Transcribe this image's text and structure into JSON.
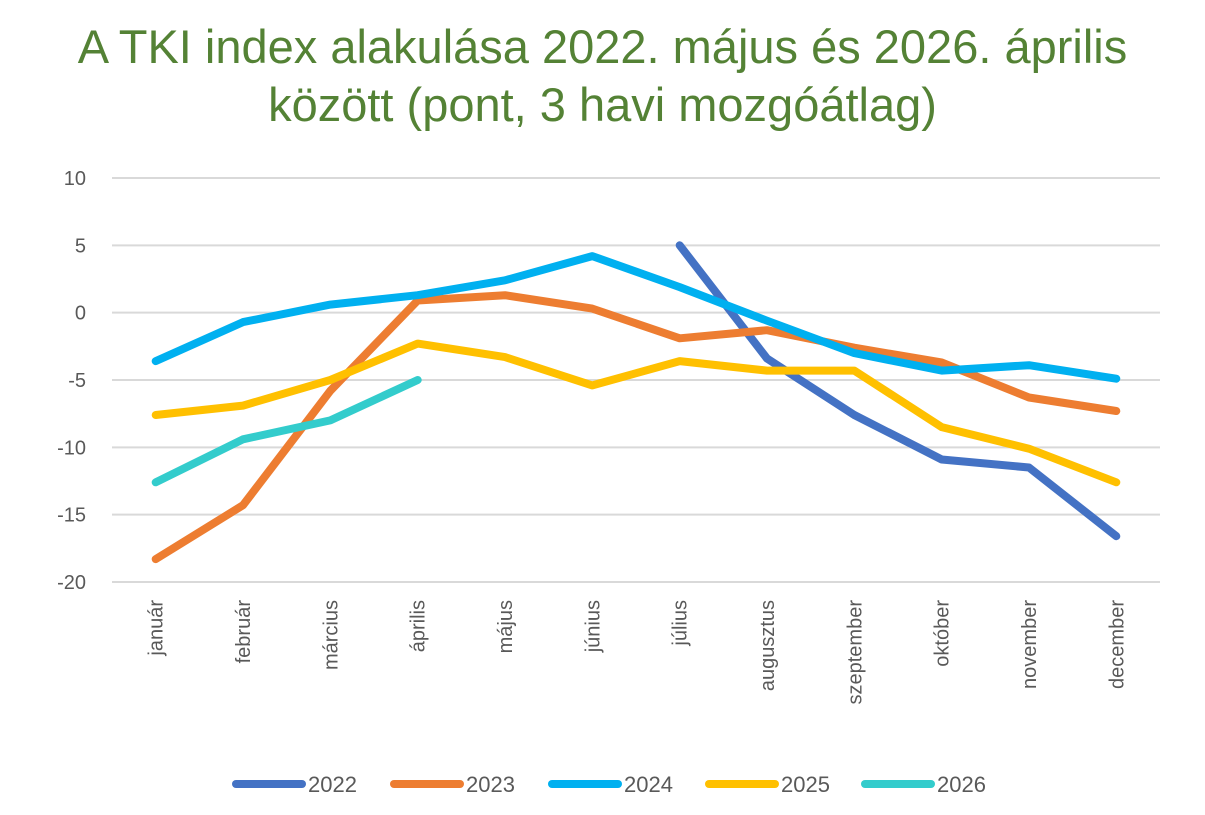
{
  "chart_data": {
    "type": "line",
    "title_lines": [
      "A TKI index alakulása 2022. május és 2026. április",
      "között (pont, 3 havi mozgóátlag)"
    ],
    "categories": [
      "január",
      "február",
      "március",
      "április",
      "május",
      "június",
      "július",
      "augusztus",
      "szeptember",
      "október",
      "november",
      "december"
    ],
    "ylim": [
      -20,
      10
    ],
    "yticks": [
      10,
      5,
      0,
      -5,
      -10,
      -15,
      -20
    ],
    "grid": true,
    "legend_position": "bottom",
    "series": [
      {
        "name": "2022",
        "color": "#4472C4",
        "values": [
          null,
          null,
          null,
          null,
          null,
          null,
          5.0,
          -3.4,
          -7.6,
          -10.9,
          -11.5,
          -16.6
        ]
      },
      {
        "name": "2023",
        "color": "#ED7D31",
        "values": [
          -18.3,
          -14.3,
          -5.8,
          0.9,
          1.3,
          0.3,
          -1.9,
          -1.3,
          -2.6,
          -3.7,
          -6.3,
          -7.3
        ]
      },
      {
        "name": "2024",
        "color": "#00B0F0",
        "values": [
          -3.6,
          -0.7,
          0.6,
          1.3,
          2.4,
          4.2,
          1.9,
          -0.6,
          -3.0,
          -4.3,
          -3.9,
          -4.9
        ]
      },
      {
        "name": "2025",
        "color": "#FFC000",
        "values": [
          -7.6,
          -6.9,
          -5.0,
          -2.3,
          -3.3,
          -5.4,
          -3.6,
          -4.3,
          -4.3,
          -8.5,
          -10.1,
          -12.6
        ]
      },
      {
        "name": "2026",
        "color": "#33CCCC",
        "values": [
          -12.6,
          -9.4,
          -8.0,
          -5.0,
          null,
          null,
          null,
          null,
          null,
          null,
          null,
          null
        ]
      }
    ]
  }
}
